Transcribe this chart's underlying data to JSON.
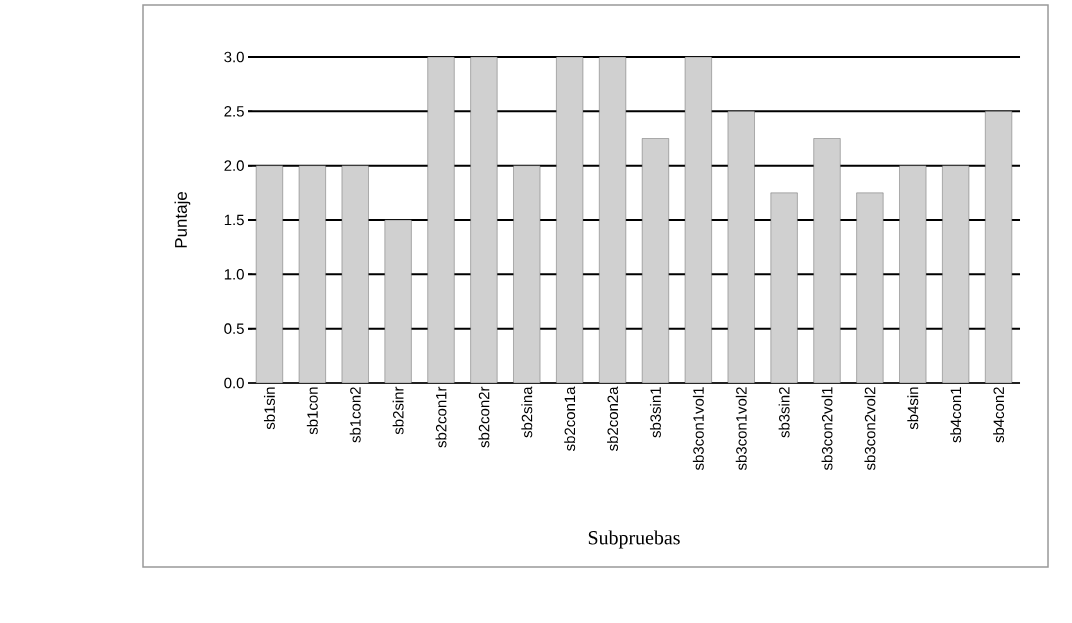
{
  "chart_data": {
    "type": "bar",
    "xlabel": "Subpruebas",
    "ylabel": "Puntaje",
    "categories": [
      "sb1sin",
      "sb1con",
      "sb1con2",
      "sb2sinr",
      "sb2con1r",
      "sb2con2r",
      "sb2sina",
      "sb2con1a",
      "sb2con2a",
      "sb3sin1",
      "sb3con1vol1",
      "sb3con1vol2",
      "sb3sin2",
      "sb3con2vol1",
      "sb3con2vol2",
      "sb4sin",
      "sb4con1",
      "sb4con2"
    ],
    "values": [
      2,
      2,
      2,
      1.5,
      3,
      3,
      2,
      3,
      3,
      2.25,
      3,
      2.5,
      1.75,
      2.25,
      1.75,
      2,
      2,
      2.5
    ],
    "color": "#d0d0d0",
    "ylim": [
      0,
      3
    ],
    "yticks": [
      {
        "value": 0,
        "label": "0.0"
      },
      0.5,
      {
        "value": 1,
        "label": "1.0"
      },
      1.5,
      {
        "value": 2,
        "label": "2.0"
      },
      2.5,
      {
        "value": 3,
        "label": "3.0"
      }
    ],
    "grid": "y"
  }
}
